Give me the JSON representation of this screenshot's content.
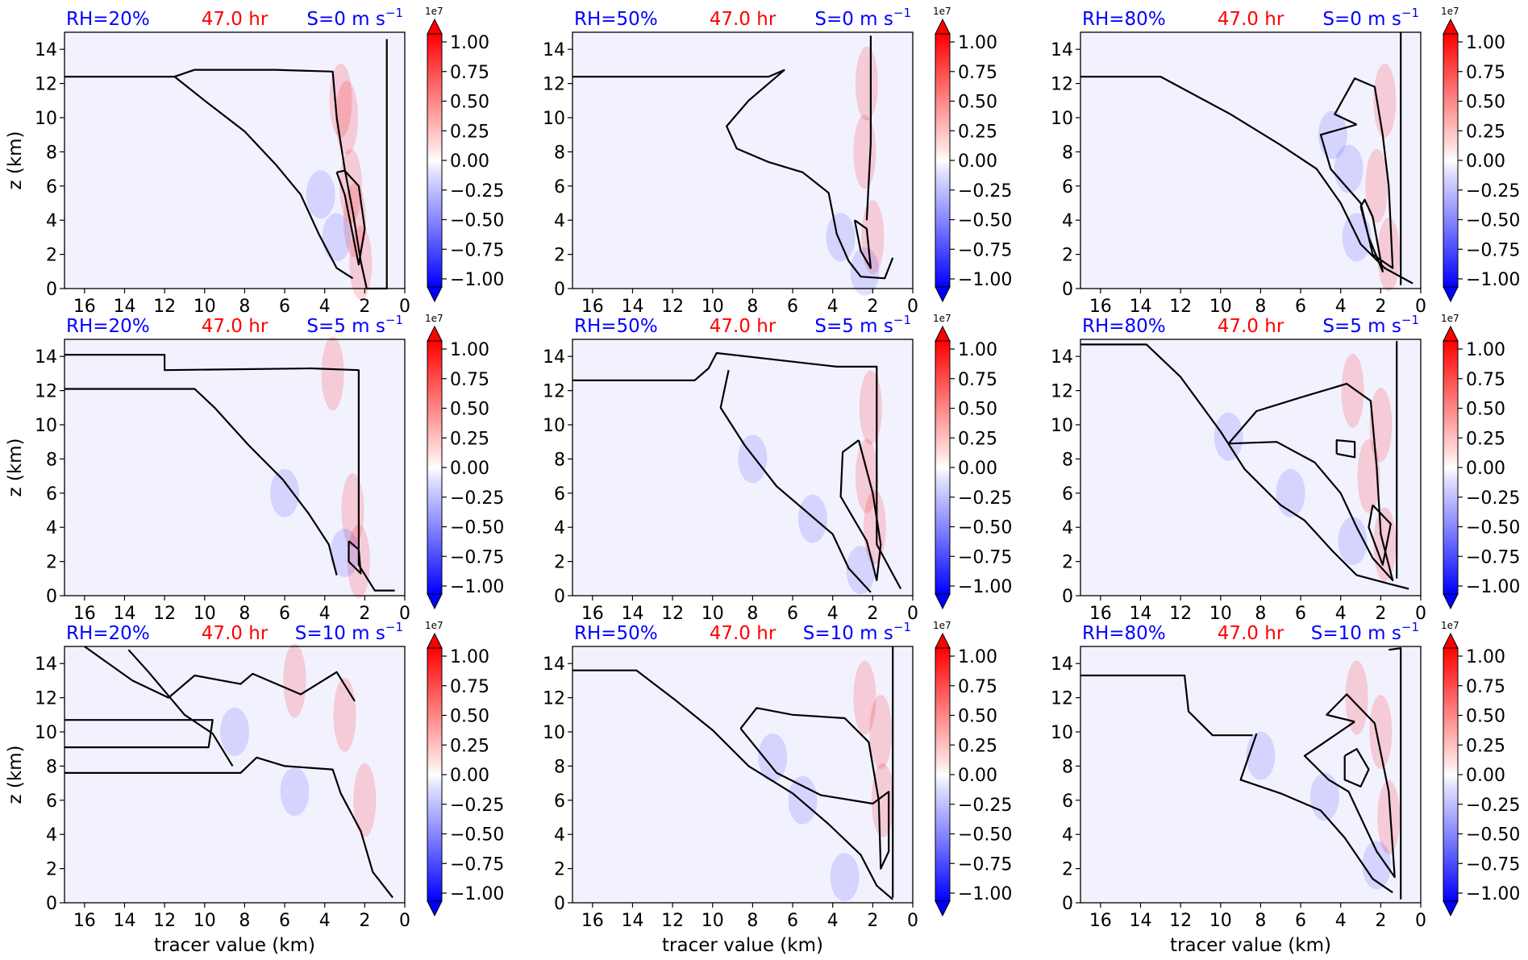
{
  "colors": {
    "rh_label": "#0000ff",
    "time_label": "#ff0000",
    "shear_label": "#0000ff",
    "contour": "#000000",
    "background_field": "#f2f2ff",
    "positive": "#ff0000",
    "negative": "#0000ff"
  },
  "chart_data": [
    {
      "type": "heatmap",
      "rh_label": "RH=20%",
      "time_label": "47.0 hr",
      "shear_label": "S=0 m s",
      "shear_exp": "−1",
      "ylabel": "z (km)",
      "xlabel": "",
      "x_ticks": [
        "16",
        "14",
        "12",
        "10",
        "8",
        "6",
        "4",
        "2",
        "0"
      ],
      "y_ticks": [
        "0",
        "2",
        "4",
        "6",
        "8",
        "10",
        "12",
        "14"
      ],
      "xlim": [
        17,
        0
      ],
      "ylim": [
        0,
        15
      ],
      "x_inverted": true,
      "colorbar": {
        "exponent": "1e7",
        "ticks": [
          "1.00",
          "0.75",
          "0.50",
          "0.25",
          "0.00",
          "−0.25",
          "−0.50",
          "−0.75",
          "−1.00"
        ],
        "range": [
          -1,
          1
        ]
      }
    },
    {
      "type": "heatmap",
      "rh_label": "RH=50%",
      "time_label": "47.0 hr",
      "shear_label": "S=0 m s",
      "shear_exp": "−1",
      "ylabel": "",
      "xlabel": "",
      "x_ticks": [
        "16",
        "14",
        "12",
        "10",
        "8",
        "6",
        "4",
        "2",
        "0"
      ],
      "y_ticks": [
        "0",
        "2",
        "4",
        "6",
        "8",
        "10",
        "12",
        "14"
      ],
      "xlim": [
        17,
        0
      ],
      "ylim": [
        0,
        15
      ],
      "x_inverted": true,
      "colorbar": {
        "exponent": "1e7",
        "ticks": [
          "1.00",
          "0.75",
          "0.50",
          "0.25",
          "0.00",
          "−0.25",
          "−0.50",
          "−0.75",
          "−1.00"
        ],
        "range": [
          -1,
          1
        ]
      }
    },
    {
      "type": "heatmap",
      "rh_label": "RH=80%",
      "time_label": "47.0 hr",
      "shear_label": "S=0 m s",
      "shear_exp": "−1",
      "ylabel": "",
      "xlabel": "",
      "x_ticks": [
        "16",
        "14",
        "12",
        "10",
        "8",
        "6",
        "4",
        "2",
        "0"
      ],
      "y_ticks": [
        "0",
        "2",
        "4",
        "6",
        "8",
        "10",
        "12",
        "14"
      ],
      "xlim": [
        17,
        0
      ],
      "ylim": [
        0,
        15
      ],
      "x_inverted": true,
      "colorbar": {
        "exponent": "1e7",
        "ticks": [
          "1.00",
          "0.75",
          "0.50",
          "0.25",
          "0.00",
          "−0.25",
          "−0.50",
          "−0.75",
          "−1.00"
        ],
        "range": [
          -1,
          1
        ]
      }
    },
    {
      "type": "heatmap",
      "rh_label": "RH=20%",
      "time_label": "47.0 hr",
      "shear_label": "S=5 m s",
      "shear_exp": "−1",
      "ylabel": "z (km)",
      "xlabel": "",
      "x_ticks": [
        "16",
        "14",
        "12",
        "10",
        "8",
        "6",
        "4",
        "2",
        "0"
      ],
      "y_ticks": [
        "0",
        "2",
        "4",
        "6",
        "8",
        "10",
        "12",
        "14"
      ],
      "xlim": [
        17,
        0
      ],
      "ylim": [
        0,
        15
      ],
      "x_inverted": true,
      "colorbar": {
        "exponent": "1e7",
        "ticks": [
          "1.00",
          "0.75",
          "0.50",
          "0.25",
          "0.00",
          "−0.25",
          "−0.50",
          "−0.75",
          "−1.00"
        ],
        "range": [
          -1,
          1
        ]
      }
    },
    {
      "type": "heatmap",
      "rh_label": "RH=50%",
      "time_label": "47.0 hr",
      "shear_label": "S=5 m s",
      "shear_exp": "−1",
      "ylabel": "",
      "xlabel": "",
      "x_ticks": [
        "16",
        "14",
        "12",
        "10",
        "8",
        "6",
        "4",
        "2",
        "0"
      ],
      "y_ticks": [
        "0",
        "2",
        "4",
        "6",
        "8",
        "10",
        "12",
        "14"
      ],
      "xlim": [
        17,
        0
      ],
      "ylim": [
        0,
        15
      ],
      "x_inverted": true,
      "colorbar": {
        "exponent": "1e7",
        "ticks": [
          "1.00",
          "0.75",
          "0.50",
          "0.25",
          "0.00",
          "−0.25",
          "−0.50",
          "−0.75",
          "−1.00"
        ],
        "range": [
          -1,
          1
        ]
      }
    },
    {
      "type": "heatmap",
      "rh_label": "RH=80%",
      "time_label": "47.0 hr",
      "shear_label": "S=5 m s",
      "shear_exp": "−1",
      "ylabel": "",
      "xlabel": "",
      "x_ticks": [
        "16",
        "14",
        "12",
        "10",
        "8",
        "6",
        "4",
        "2",
        "0"
      ],
      "y_ticks": [
        "0",
        "2",
        "4",
        "6",
        "8",
        "10",
        "12",
        "14"
      ],
      "xlim": [
        17,
        0
      ],
      "ylim": [
        0,
        15
      ],
      "x_inverted": true,
      "colorbar": {
        "exponent": "1e7",
        "ticks": [
          "1.00",
          "0.75",
          "0.50",
          "0.25",
          "0.00",
          "−0.25",
          "−0.50",
          "−0.75",
          "−1.00"
        ],
        "range": [
          -1,
          1
        ]
      }
    },
    {
      "type": "heatmap",
      "rh_label": "RH=20%",
      "time_label": "47.0 hr",
      "shear_label": "S=10 m s",
      "shear_exp": "−1",
      "ylabel": "z (km)",
      "xlabel": "tracer value (km)",
      "x_ticks": [
        "16",
        "14",
        "12",
        "10",
        "8",
        "6",
        "4",
        "2",
        "0"
      ],
      "y_ticks": [
        "0",
        "2",
        "4",
        "6",
        "8",
        "10",
        "12",
        "14"
      ],
      "xlim": [
        17,
        0
      ],
      "ylim": [
        0,
        15
      ],
      "x_inverted": true,
      "colorbar": {
        "exponent": "1e7",
        "ticks": [
          "1.00",
          "0.75",
          "0.50",
          "0.25",
          "0.00",
          "−0.25",
          "−0.50",
          "−0.75",
          "−1.00"
        ],
        "range": [
          -1,
          1
        ]
      }
    },
    {
      "type": "heatmap",
      "rh_label": "RH=50%",
      "time_label": "47.0 hr",
      "shear_label": "S=10 m s",
      "shear_exp": "−1",
      "ylabel": "",
      "xlabel": "tracer value (km)",
      "x_ticks": [
        "16",
        "14",
        "12",
        "10",
        "8",
        "6",
        "4",
        "2",
        "0"
      ],
      "y_ticks": [
        "0",
        "2",
        "4",
        "6",
        "8",
        "10",
        "12",
        "14"
      ],
      "xlim": [
        17,
        0
      ],
      "ylim": [
        0,
        15
      ],
      "x_inverted": true,
      "colorbar": {
        "exponent": "1e7",
        "ticks": [
          "1.00",
          "0.75",
          "0.50",
          "0.25",
          "0.00",
          "−0.25",
          "−0.50",
          "−0.75",
          "−1.00"
        ],
        "range": [
          -1,
          1
        ]
      }
    },
    {
      "type": "heatmap",
      "rh_label": "RH=80%",
      "time_label": "47.0 hr",
      "shear_label": "S=10 m s",
      "shear_exp": "−1",
      "ylabel": "",
      "xlabel": "tracer value (km)",
      "x_ticks": [
        "16",
        "14",
        "12",
        "10",
        "8",
        "6",
        "4",
        "2",
        "0"
      ],
      "y_ticks": [
        "0",
        "2",
        "4",
        "6",
        "8",
        "10",
        "12",
        "14"
      ],
      "xlim": [
        17,
        0
      ],
      "ylim": [
        0,
        15
      ],
      "x_inverted": true,
      "colorbar": {
        "exponent": "1e7",
        "ticks": [
          "1.00",
          "0.75",
          "0.50",
          "0.25",
          "0.00",
          "−0.25",
          "−0.50",
          "−0.75",
          "−1.00"
        ],
        "range": [
          -1,
          1
        ]
      }
    }
  ]
}
